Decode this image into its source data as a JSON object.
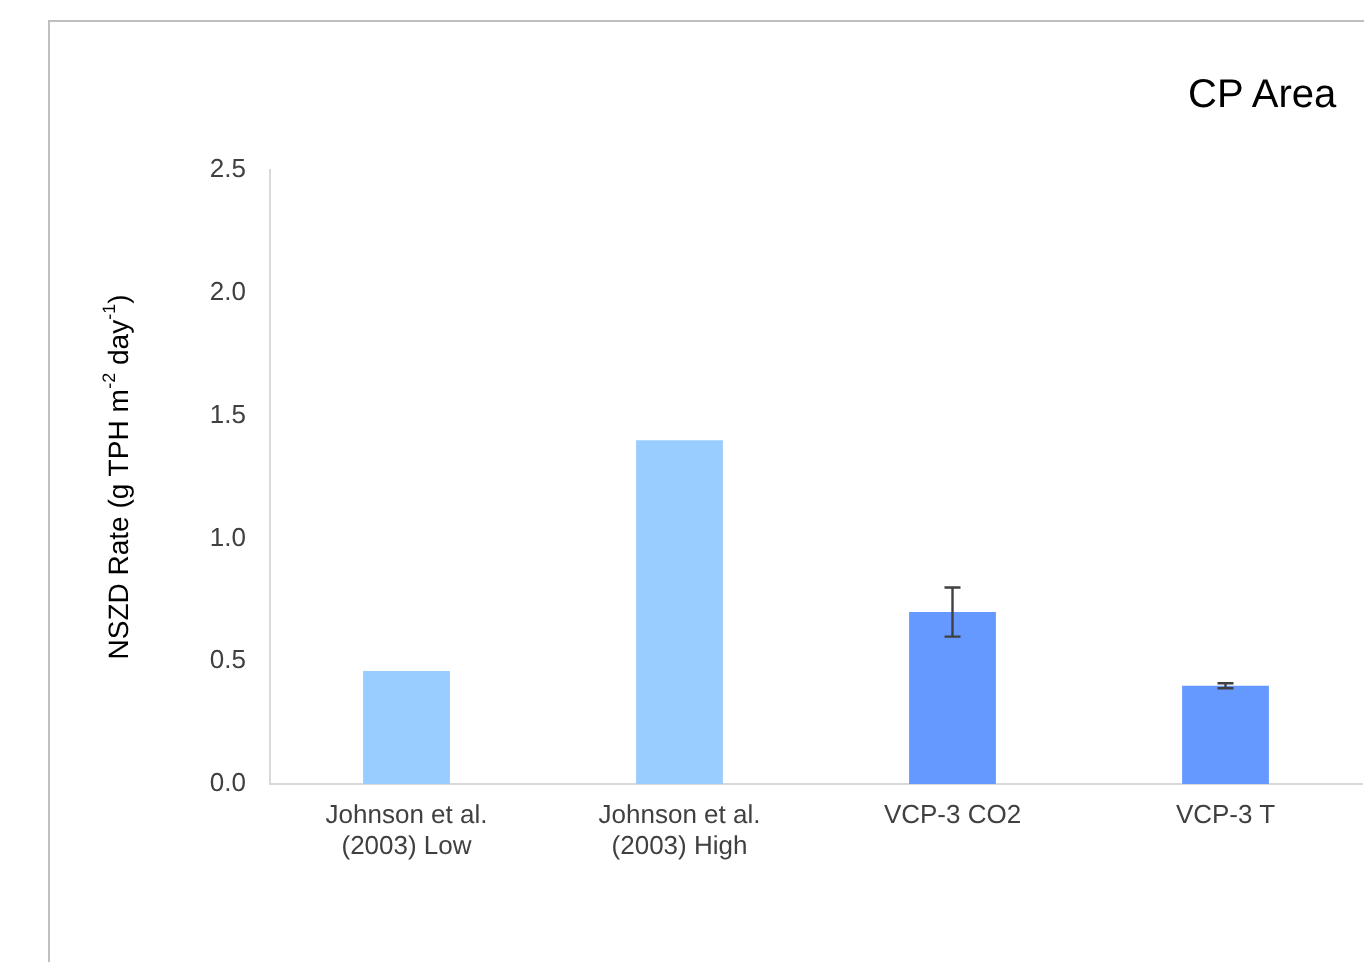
{
  "chart_data": {
    "type": "bar",
    "title": "CP Area",
    "ylabel": "NSZD Rate (g TPH m$^{-2}$ day$^{-1}$)",
    "categories": [
      "Johnson et al. (2003) Low",
      "Johnson et al. (2003) High",
      "VCP-3 CO2",
      "VCP-3 T"
    ],
    "values": [
      0.46,
      1.4,
      0.7,
      0.4
    ],
    "colors": [
      "#99ccff",
      "#99ccff",
      "#6699ff",
      "#6699ff"
    ],
    "errors": [
      null,
      null,
      0.1,
      0.01
    ],
    "ylim": [
      0,
      2.5
    ],
    "yticks": [
      {
        "value": 0,
        "label": "0.0"
      },
      0.5,
      {
        "value": 1,
        "label": "1.0"
      },
      1.5,
      {
        "value": 2,
        "label": "2.0"
      },
      2.5
    ],
    "grid": false,
    "legend": false
  }
}
